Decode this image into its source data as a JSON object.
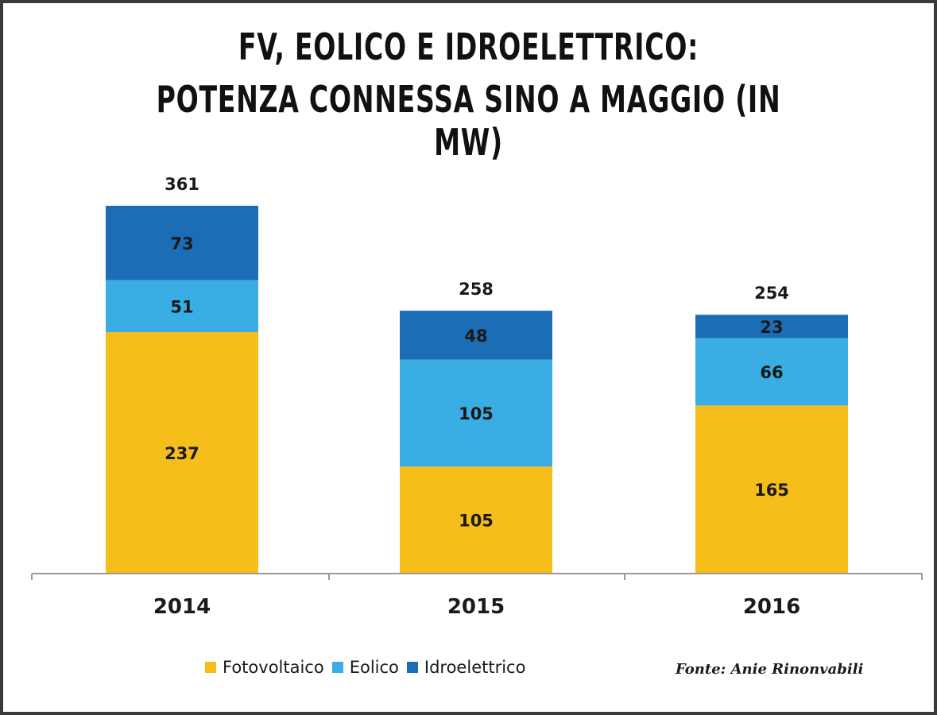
{
  "chart_data": {
    "type": "bar",
    "stacked": true,
    "title": "FV, EOLICO E IDROELETTRICO:",
    "subtitle": "POTENZA CONNESSA SINO A MAGGIO (IN MW)",
    "categories": [
      "2014",
      "2015",
      "2016"
    ],
    "series": [
      {
        "name": "Fotovoltaico",
        "color": "#f5be1a",
        "values": [
          237,
          105,
          165
        ]
      },
      {
        "name": "Eolico",
        "color": "#3aaee4",
        "values": [
          51,
          105,
          66
        ]
      },
      {
        "name": "Idroelettrico",
        "color": "#1b6db5",
        "values": [
          73,
          48,
          23
        ]
      }
    ],
    "totals": [
      361,
      258,
      254
    ],
    "ylim": [
      0,
      361
    ],
    "legend_position": "bottom",
    "grid": false,
    "source": "Fonte: Anie Rinonvabili"
  }
}
